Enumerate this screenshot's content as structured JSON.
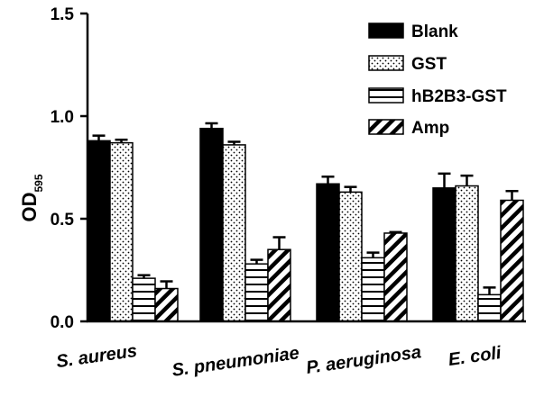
{
  "chart_data": {
    "type": "bar",
    "title": "",
    "ylabel": "OD",
    "ylabel_subscript": "595",
    "xlabel": "",
    "ylim": [
      0,
      1.5
    ],
    "yticks": [
      "0.0",
      "0.5",
      "1.0",
      "1.5"
    ],
    "ytick_values": [
      0,
      0.5,
      1.0,
      1.5
    ],
    "categories": [
      "S. aureus",
      "S. pneumoniae",
      "P. aeruginosa",
      "E. coli"
    ],
    "series": [
      {
        "name": "Blank",
        "pattern": "solid",
        "values": [
          0.88,
          0.94,
          0.67,
          0.65
        ],
        "errors": [
          0.025,
          0.025,
          0.035,
          0.07
        ]
      },
      {
        "name": "GST",
        "pattern": "dots",
        "values": [
          0.87,
          0.86,
          0.63,
          0.66
        ],
        "errors": [
          0.015,
          0.015,
          0.025,
          0.05
        ]
      },
      {
        "name": "hB2B3-GST",
        "pattern": "hlines",
        "values": [
          0.21,
          0.28,
          0.31,
          0.13
        ],
        "errors": [
          0.015,
          0.02,
          0.025,
          0.035
        ]
      },
      {
        "name": "Amp",
        "pattern": "diagonal",
        "values": [
          0.16,
          0.35,
          0.43,
          0.59
        ],
        "errors": [
          0.035,
          0.06,
          0.005,
          0.045
        ]
      }
    ],
    "legend_position": "top-right",
    "grid": false,
    "colors": {
      "bar_outline": "#000000",
      "fill": "#000000",
      "background": "#ffffff"
    }
  }
}
